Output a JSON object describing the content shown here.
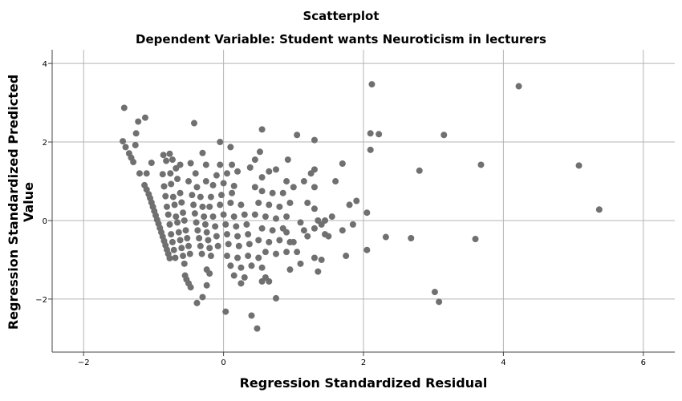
{
  "chart_data": {
    "type": "scatter",
    "title": "Scatterplot",
    "subtitle": "Dependent Variable: Student wants Neuroticism in lecturers",
    "xlabel": "Regression Standardized Residual",
    "ylabel": "Regression Standardized Predicted Value",
    "xlim": [
      -2.45,
      6.45
    ],
    "ylim": [
      -3.35,
      4.35
    ],
    "xticks": [
      -2,
      0,
      2,
      4,
      6
    ],
    "yticks": [
      -2,
      0,
      2,
      4
    ],
    "xtick_labels": [
      "−2",
      "0",
      "2",
      "4",
      "6"
    ],
    "ytick_labels": [
      "−2",
      "0",
      "2",
      "4"
    ],
    "grid": true,
    "point_color": "#707070",
    "points": [
      [
        -1.42,
        2.87
      ],
      [
        -1.22,
        2.52
      ],
      [
        -1.12,
        2.62
      ],
      [
        -1.25,
        2.22
      ],
      [
        -1.44,
        2.02
      ],
      [
        -1.4,
        1.87
      ],
      [
        -1.35,
        1.71
      ],
      [
        -1.32,
        1.6
      ],
      [
        -1.29,
        1.49
      ],
      [
        -1.26,
        1.92
      ],
      [
        -1.2,
        1.2
      ],
      [
        -1.1,
        1.2
      ],
      [
        -1.03,
        1.47
      ],
      [
        -1.13,
        0.9
      ],
      [
        -1.1,
        0.79
      ],
      [
        -1.07,
        0.67
      ],
      [
        -1.05,
        0.57
      ],
      [
        -1.03,
        0.46
      ],
      [
        -1.01,
        0.35
      ],
      [
        -0.99,
        0.24
      ],
      [
        -0.97,
        0.13
      ],
      [
        -0.95,
        0.02
      ],
      [
        -0.93,
        -0.08
      ],
      [
        -0.91,
        -0.19
      ],
      [
        -0.89,
        -0.3
      ],
      [
        -0.87,
        -0.41
      ],
      [
        -0.85,
        -0.52
      ],
      [
        -0.83,
        -0.63
      ],
      [
        -0.81,
        -0.74
      ],
      [
        -0.79,
        -0.85
      ],
      [
        -0.77,
        -0.96
      ],
      [
        -0.86,
        1.67
      ],
      [
        -0.77,
        1.7
      ],
      [
        -0.82,
        1.52
      ],
      [
        -0.73,
        1.55
      ],
      [
        -0.68,
        1.33
      ],
      [
        -0.87,
        1.18
      ],
      [
        -0.76,
        1.2
      ],
      [
        -0.66,
        1.06
      ],
      [
        -0.85,
        0.87
      ],
      [
        -0.75,
        0.93
      ],
      [
        -0.83,
        0.62
      ],
      [
        -0.72,
        0.6
      ],
      [
        -0.62,
        0.7
      ],
      [
        -0.81,
        0.35
      ],
      [
        -0.7,
        0.4
      ],
      [
        -0.6,
        0.46
      ],
      [
        -0.79,
        0.15
      ],
      [
        -0.68,
        0.1
      ],
      [
        -0.58,
        0.2
      ],
      [
        -0.77,
        -0.1
      ],
      [
        -0.66,
        -0.05
      ],
      [
        -0.56,
        0.0
      ],
      [
        -0.75,
        -0.35
      ],
      [
        -0.64,
        -0.3
      ],
      [
        -0.54,
        -0.25
      ],
      [
        -0.73,
        -0.55
      ],
      [
        -0.62,
        -0.5
      ],
      [
        -0.52,
        -0.45
      ],
      [
        -0.71,
        -0.75
      ],
      [
        -0.6,
        -0.7
      ],
      [
        -0.5,
        -0.65
      ],
      [
        -0.69,
        -0.95
      ],
      [
        -0.58,
        -0.9
      ],
      [
        -0.48,
        -0.85
      ],
      [
        -0.56,
        -1.1
      ],
      [
        -0.55,
        -1.4
      ],
      [
        -0.53,
        -1.5
      ],
      [
        -0.5,
        -1.6
      ],
      [
        -0.47,
        -1.7
      ],
      [
        -0.62,
        1.42
      ],
      [
        -0.47,
        1.46
      ],
      [
        -0.4,
        1.2
      ],
      [
        -0.5,
        1.0
      ],
      [
        -0.38,
        0.85
      ],
      [
        -0.45,
        0.65
      ],
      [
        -0.33,
        0.6
      ],
      [
        -0.43,
        0.4
      ],
      [
        -0.3,
        0.35
      ],
      [
        -0.41,
        0.18
      ],
      [
        -0.28,
        0.1
      ],
      [
        -0.39,
        -0.05
      ],
      [
        -0.26,
        -0.1
      ],
      [
        -0.37,
        -0.25
      ],
      [
        -0.24,
        -0.3
      ],
      [
        -0.35,
        -0.45
      ],
      [
        -0.22,
        -0.5
      ],
      [
        -0.33,
        -0.65
      ],
      [
        -0.2,
        -0.7
      ],
      [
        -0.31,
        -0.85
      ],
      [
        -0.18,
        -0.9
      ],
      [
        -0.24,
        -1.25
      ],
      [
        -0.2,
        -1.35
      ],
      [
        -0.42,
        2.48
      ],
      [
        -0.3,
        1.72
      ],
      [
        -0.25,
        1.42
      ],
      [
        -0.25,
        1.0
      ],
      [
        -0.38,
        -2.1
      ],
      [
        -0.3,
        -1.95
      ],
      [
        -0.24,
        -1.65
      ],
      [
        -0.05,
        2.0
      ],
      [
        0.1,
        1.87
      ],
      [
        -0.05,
        1.42
      ],
      [
        0.12,
        1.42
      ],
      [
        -0.1,
        1.15
      ],
      [
        0.05,
        1.2
      ],
      [
        0.2,
        1.25
      ],
      [
        -0.15,
        0.9
      ],
      [
        0.0,
        0.95
      ],
      [
        0.15,
        0.88
      ],
      [
        -0.18,
        0.6
      ],
      [
        -0.03,
        0.65
      ],
      [
        0.12,
        0.7
      ],
      [
        -0.2,
        0.35
      ],
      [
        -0.05,
        0.4
      ],
      [
        0.1,
        0.45
      ],
      [
        0.25,
        0.4
      ],
      [
        -0.15,
        0.1
      ],
      [
        0.0,
        0.15
      ],
      [
        0.15,
        0.1
      ],
      [
        0.3,
        0.15
      ],
      [
        -0.12,
        -0.15
      ],
      [
        0.03,
        -0.1
      ],
      [
        0.18,
        -0.15
      ],
      [
        0.33,
        -0.1
      ],
      [
        -0.1,
        -0.4
      ],
      [
        0.05,
        -0.35
      ],
      [
        0.2,
        -0.4
      ],
      [
        0.35,
        -0.35
      ],
      [
        -0.08,
        -0.65
      ],
      [
        0.07,
        -0.6
      ],
      [
        0.22,
        -0.65
      ],
      [
        0.37,
        -0.6
      ],
      [
        0.05,
        -0.9
      ],
      [
        0.2,
        -0.95
      ],
      [
        0.35,
        -0.9
      ],
      [
        0.5,
        -0.95
      ],
      [
        0.1,
        -1.15
      ],
      [
        0.25,
        -1.2
      ],
      [
        0.4,
        -1.15
      ],
      [
        0.55,
        -1.2
      ],
      [
        0.15,
        -1.4
      ],
      [
        0.3,
        -1.45
      ],
      [
        0.6,
        -1.45
      ],
      [
        0.25,
        -1.6
      ],
      [
        0.55,
        -1.55
      ],
      [
        0.65,
        -1.55
      ],
      [
        0.03,
        -2.32
      ],
      [
        0.4,
        -2.42
      ],
      [
        0.48,
        -2.75
      ],
      [
        0.75,
        -1.98
      ],
      [
        0.55,
        2.32
      ],
      [
        0.52,
        1.75
      ],
      [
        0.45,
        1.55
      ],
      [
        0.38,
        1.35
      ],
      [
        0.55,
        1.1
      ],
      [
        0.65,
        1.25
      ],
      [
        0.75,
        1.3
      ],
      [
        0.45,
        0.85
      ],
      [
        0.55,
        0.75
      ],
      [
        0.7,
        0.7
      ],
      [
        0.85,
        0.7
      ],
      [
        0.5,
        0.45
      ],
      [
        0.65,
        0.4
      ],
      [
        0.8,
        0.35
      ],
      [
        0.45,
        0.15
      ],
      [
        0.6,
        0.1
      ],
      [
        0.75,
        0.05
      ],
      [
        0.9,
        0.1
      ],
      [
        0.55,
        -0.2
      ],
      [
        0.7,
        -0.25
      ],
      [
        0.85,
        -0.2
      ],
      [
        0.5,
        -0.5
      ],
      [
        0.65,
        -0.55
      ],
      [
        0.8,
        -0.5
      ],
      [
        0.95,
        -0.55
      ],
      [
        0.6,
        -0.8
      ],
      [
        0.75,
        -0.85
      ],
      [
        0.9,
        -0.8
      ],
      [
        1.05,
        -0.8
      ],
      [
        0.95,
        -1.25
      ],
      [
        1.1,
        -1.1
      ],
      [
        0.92,
        1.55
      ],
      [
        0.9,
        1.0
      ],
      [
        1.0,
        0.85
      ],
      [
        0.95,
        0.45
      ],
      [
        0.9,
        -0.3
      ],
      [
        1.0,
        -0.55
      ],
      [
        1.1,
        -0.05
      ],
      [
        1.15,
        -0.25
      ],
      [
        1.2,
        -0.4
      ],
      [
        1.05,
        2.18
      ],
      [
        1.3,
        2.05
      ],
      [
        1.25,
        1.2
      ],
      [
        1.3,
        1.3
      ],
      [
        1.15,
        1.0
      ],
      [
        1.3,
        0.85
      ],
      [
        1.2,
        0.45
      ],
      [
        1.3,
        0.3
      ],
      [
        1.35,
        0.0
      ],
      [
        1.3,
        -0.2
      ],
      [
        1.4,
        -0.1
      ],
      [
        1.45,
        -0.35
      ],
      [
        1.4,
        -1.0
      ],
      [
        1.3,
        -0.95
      ],
      [
        1.35,
        -1.3
      ],
      [
        1.5,
        -0.4
      ],
      [
        1.45,
        0.0
      ],
      [
        1.55,
        0.1
      ],
      [
        1.6,
        1.0
      ],
      [
        1.7,
        1.45
      ],
      [
        1.8,
        0.4
      ],
      [
        1.9,
        0.5
      ],
      [
        1.85,
        -0.1
      ],
      [
        1.7,
        -0.25
      ],
      [
        1.75,
        -0.9
      ],
      [
        2.05,
        -0.75
      ],
      [
        2.05,
        0.2
      ],
      [
        2.1,
        1.8
      ],
      [
        2.1,
        2.22
      ],
      [
        2.22,
        2.2
      ],
      [
        2.12,
        3.47
      ],
      [
        2.32,
        -0.42
      ],
      [
        2.68,
        -0.45
      ],
      [
        2.8,
        1.27
      ],
      [
        3.02,
        -1.82
      ],
      [
        3.08,
        -2.07
      ],
      [
        3.15,
        2.18
      ],
      [
        3.6,
        -0.47
      ],
      [
        3.68,
        1.42
      ],
      [
        4.22,
        3.42
      ],
      [
        5.08,
        1.4
      ],
      [
        5.37,
        0.28
      ]
    ]
  }
}
